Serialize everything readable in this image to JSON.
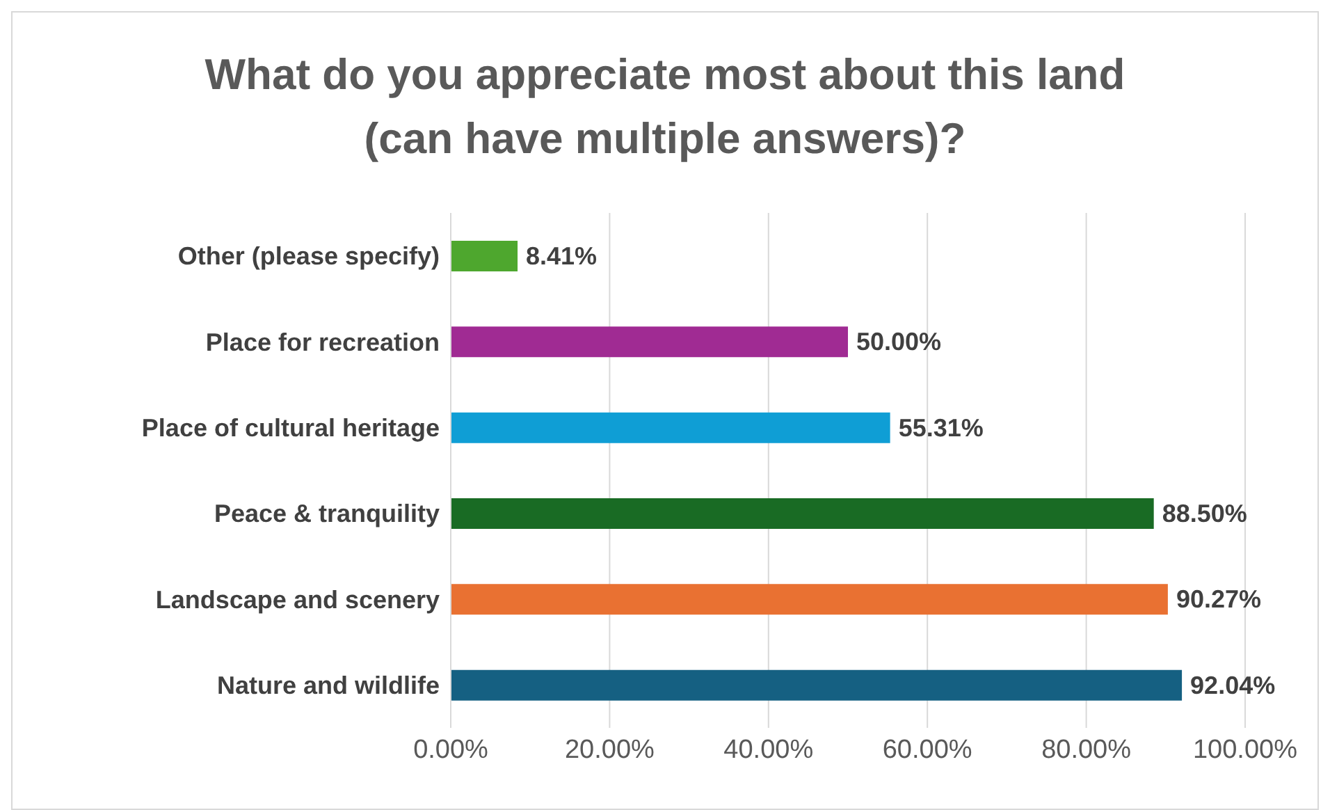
{
  "chart_data": {
    "type": "bar",
    "orientation": "horizontal",
    "title": "What do you appreciate most about this land (can have multiple answers)?",
    "categories": [
      "Other (please specify)",
      "Place for recreation",
      "Place of cultural heritage",
      "Peace & tranquility",
      "Landscape and scenery",
      "Nature and wildlife"
    ],
    "values": [
      8.41,
      50.0,
      55.31,
      88.5,
      90.27,
      92.04
    ],
    "colors": [
      "#4ea72e",
      "#a02b93",
      "#0f9ed5",
      "#196b24",
      "#e97132",
      "#156082"
    ],
    "value_labels": [
      "8.41%",
      "50.00%",
      "55.31%",
      "88.50%",
      "90.27%",
      "92.04%"
    ],
    "xlim": [
      0,
      100
    ],
    "xticks": [
      {
        "value": 0,
        "label": "0.00%"
      },
      {
        "value": 20,
        "label": "20.00%"
      },
      {
        "value": 40,
        "label": "40.00%"
      },
      {
        "value": 60,
        "label": "60.00%"
      },
      {
        "value": 80,
        "label": "80.00%"
      },
      {
        "value": 100,
        "label": "100.00%"
      }
    ],
    "grid": "x"
  }
}
